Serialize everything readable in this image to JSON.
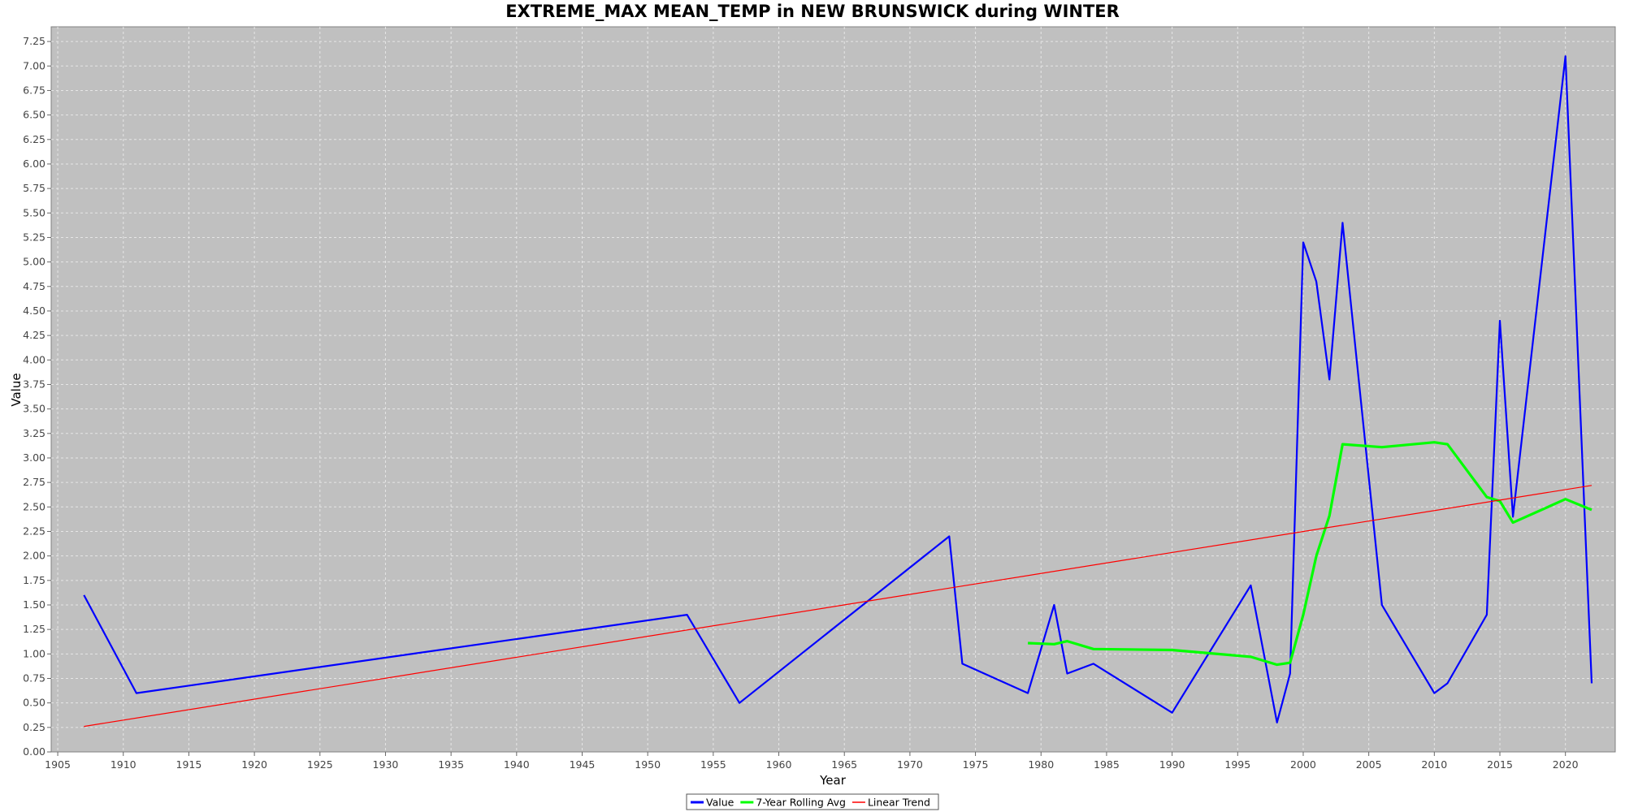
{
  "chart_data": {
    "type": "line",
    "title": "EXTREME_MAX MEAN_TEMP in NEW BRUNSWICK during WINTER",
    "xlabel": "Year",
    "ylabel": "Value",
    "xlim": [
      1904.5,
      2023.8
    ],
    "ylim": [
      0.0,
      7.4
    ],
    "x_ticks": [
      1905,
      1910,
      1915,
      1920,
      1925,
      1930,
      1935,
      1940,
      1945,
      1950,
      1955,
      1960,
      1965,
      1970,
      1975,
      1980,
      1985,
      1990,
      1995,
      2000,
      2005,
      2010,
      2015,
      2020
    ],
    "y_ticks": [
      "0.00",
      "0.25",
      "0.50",
      "0.75",
      "1.00",
      "1.25",
      "1.50",
      "1.75",
      "2.00",
      "2.25",
      "2.50",
      "2.75",
      "3.00",
      "3.25",
      "3.50",
      "3.75",
      "4.00",
      "4.25",
      "4.50",
      "4.75",
      "5.00",
      "5.25",
      "5.50",
      "5.75",
      "6.00",
      "6.25",
      "6.50",
      "6.75",
      "7.00",
      "7.25"
    ],
    "grid": true,
    "legend_position": "bottom-center",
    "background_color": "#c0c0c0",
    "grid_color": "#e6e6e6",
    "series": [
      {
        "name": "Value",
        "color": "#0000ff",
        "x": [
          1907,
          1911,
          1953,
          1957,
          1973,
          1974,
          1979,
          1981,
          1982,
          1984,
          1990,
          1996,
          1998,
          1999,
          2000,
          2001,
          2002,
          2003,
          2006,
          2010,
          2011,
          2014,
          2015,
          2016,
          2020,
          2022
        ],
        "y": [
          1.6,
          0.6,
          1.4,
          0.5,
          2.2,
          0.9,
          0.6,
          1.5,
          0.8,
          0.9,
          0.4,
          1.7,
          0.3,
          0.8,
          5.2,
          4.8,
          3.8,
          5.4,
          1.5,
          0.6,
          0.7,
          1.4,
          4.4,
          2.4,
          7.1,
          0.7
        ]
      },
      {
        "name": "7-Year Rolling Avg",
        "color": "#00ff00",
        "x": [
          1979,
          1981,
          1982,
          1984,
          1990,
          1996,
          1998,
          1999,
          2000,
          2001,
          2002,
          2003,
          2006,
          2010,
          2011,
          2014,
          2015,
          2016,
          2020,
          2022
        ],
        "y": [
          1.11,
          1.1,
          1.13,
          1.05,
          1.04,
          0.97,
          0.89,
          0.91,
          1.4,
          2.0,
          2.41,
          3.14,
          3.11,
          3.16,
          3.14,
          2.6,
          2.56,
          2.34,
          2.58,
          2.47
        ]
      },
      {
        "name": "Linear Trend",
        "color": "#ff0000",
        "x": [
          1907,
          2022
        ],
        "y": [
          0.26,
          2.72
        ]
      }
    ]
  }
}
